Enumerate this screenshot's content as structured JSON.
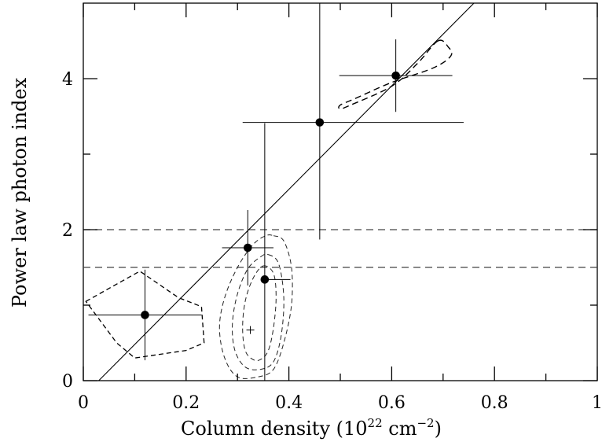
{
  "chart_data": {
    "type": "scatter",
    "xlabel": "Column density (10",
    "xlabel_exp1": "22",
    "xlabel_mid": " cm",
    "xlabel_exp2": "−2",
    "xlabel_end": ")",
    "ylabel": "Power law photon index",
    "xlim": [
      0,
      1
    ],
    "ylim": [
      0,
      5
    ],
    "xticks": [
      "0",
      "0.2",
      "0.4",
      "0.6",
      "0.8",
      "1"
    ],
    "xtick_values": [
      0,
      0.2,
      0.4,
      0.6,
      0.8,
      1.0
    ],
    "yticks": [
      "0",
      "2",
      "4"
    ],
    "ytick_values": [
      0,
      2,
      4
    ],
    "minor_xticks": [
      0.1,
      0.3,
      0.5,
      0.7,
      0.9
    ],
    "minor_yticks": [
      1,
      3
    ],
    "points": [
      {
        "x": 0.12,
        "y": 0.87,
        "xerr": [
          0.11,
          0.11
        ],
        "yerr": [
          0.6,
          0.6
        ]
      },
      {
        "x": 0.32,
        "y": 1.76,
        "xerr": [
          0.05,
          0.05
        ],
        "yerr": [
          0.5,
          0.5
        ]
      },
      {
        "x": 0.353,
        "y": 1.34,
        "xerr": [
          0.0,
          0.05
        ],
        "yerr": [
          1.34,
          2.07
        ]
      },
      {
        "x": 0.46,
        "y": 3.42,
        "xerr": [
          0.15,
          0.28
        ],
        "yerr": [
          1.55,
          1.58
        ]
      },
      {
        "x": 0.608,
        "y": 4.04,
        "xerr": [
          0.11,
          0.11
        ],
        "yerr": [
          0.48,
          0.48
        ]
      }
    ],
    "fit_line": {
      "x": [
        0.03,
        0.76
      ],
      "y": [
        0.0,
        5.0
      ]
    },
    "hlines": [
      2.0,
      1.5
    ],
    "best_fit_marker": {
      "x": 0.325,
      "y": 0.67
    },
    "contours": {
      "central": [
        [
          [
            0.35,
            1.52
          ],
          [
            0.37,
            1.42
          ],
          [
            0.375,
            1.1
          ],
          [
            0.37,
            0.7
          ],
          [
            0.36,
            0.4
          ],
          [
            0.345,
            0.28
          ],
          [
            0.33,
            0.28
          ],
          [
            0.315,
            0.4
          ],
          [
            0.31,
            0.7
          ],
          [
            0.315,
            1.05
          ],
          [
            0.33,
            1.35
          ],
          [
            0.35,
            1.52
          ]
        ],
        [
          [
            0.36,
            1.67
          ],
          [
            0.38,
            1.55
          ],
          [
            0.39,
            1.1
          ],
          [
            0.385,
            0.6
          ],
          [
            0.37,
            0.25
          ],
          [
            0.345,
            0.15
          ],
          [
            0.315,
            0.18
          ],
          [
            0.295,
            0.4
          ],
          [
            0.29,
            0.75
          ],
          [
            0.3,
            1.15
          ],
          [
            0.32,
            1.48
          ],
          [
            0.345,
            1.64
          ],
          [
            0.36,
            1.67
          ]
        ],
        [
          [
            0.37,
            1.92
          ],
          [
            0.39,
            1.85
          ],
          [
            0.405,
            1.5
          ],
          [
            0.405,
            1.0
          ],
          [
            0.39,
            0.5
          ],
          [
            0.37,
            0.15
          ],
          [
            0.34,
            0.05
          ],
          [
            0.3,
            0.05
          ],
          [
            0.275,
            0.3
          ],
          [
            0.265,
            0.7
          ],
          [
            0.275,
            1.1
          ],
          [
            0.3,
            1.5
          ],
          [
            0.33,
            1.8
          ],
          [
            0.355,
            1.92
          ],
          [
            0.37,
            1.92
          ]
        ]
      ],
      "left": [
        [
          0.005,
          1.05
        ],
        [
          0.11,
          1.45
        ],
        [
          0.185,
          1.1
        ],
        [
          0.23,
          0.98
        ],
        [
          0.235,
          0.5
        ],
        [
          0.2,
          0.4
        ],
        [
          0.1,
          0.3
        ],
        [
          0.065,
          0.5
        ],
        [
          0.005,
          1.05
        ]
      ],
      "right": [
        [
          0.69,
          4.5
        ],
        [
          0.71,
          4.42
        ],
        [
          0.715,
          4.3
        ],
        [
          0.68,
          4.14
        ],
        [
          0.6,
          3.95
        ],
        [
          0.53,
          3.74
        ],
        [
          0.5,
          3.65
        ],
        [
          0.5,
          3.6
        ],
        [
          0.52,
          3.65
        ],
        [
          0.6,
          3.9
        ],
        [
          0.65,
          4.2
        ],
        [
          0.69,
          4.5
        ]
      ]
    }
  }
}
